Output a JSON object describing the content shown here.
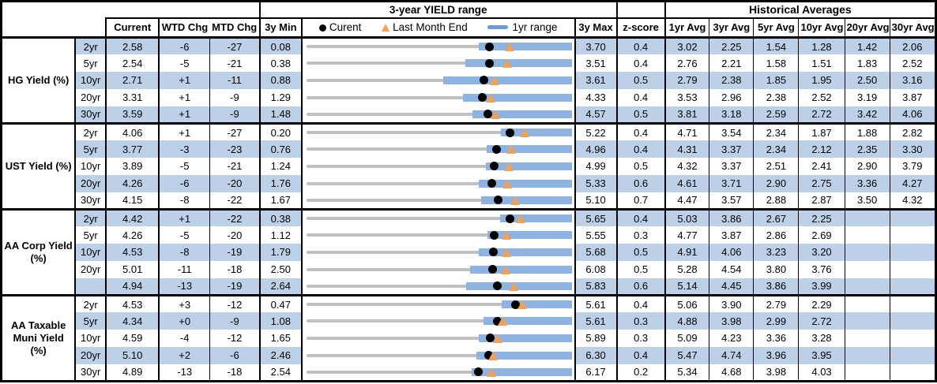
{
  "colors": {
    "stripe": "#bcd0e8",
    "bar": "#8db3e2",
    "track": "#c0c0c0",
    "dot": "#000000",
    "tri": "#f5a053",
    "border": "#000000",
    "dash": "#6b9bd7"
  },
  "header": {
    "yield_range_title": "3-year YIELD range",
    "historical_title": "Historical Averages",
    "current": "Current",
    "wtd": "WTD Chg",
    "mtd": "MTD Chg",
    "min": "3y Min",
    "max": "3y Max",
    "zscore": "z-score",
    "avgs": [
      "1yr Avg",
      "3yr Avg",
      "5yr Avg",
      "10yr Avg",
      "20yr Avg",
      "30yr Avg"
    ],
    "legend": {
      "current": "Curent",
      "last_month_end": "Last Month End",
      "range": "1yr range"
    }
  },
  "chart_data": {
    "type": "bullet-range-table",
    "title": "3-year YIELD range",
    "legend": [
      "Current (black dot)",
      "Last Month End (orange triangle)",
      "1yr range (blue bar)"
    ],
    "note_units": "yields in %, WTD/MTD changes in bp",
    "groups": [
      {
        "label": "HG Yield (%)",
        "rows": [
          {
            "tenor": "2yr",
            "current": "2.58",
            "wtd": "-6",
            "mtd": "-27",
            "min": "0.08",
            "max": "3.70",
            "z": "0.4",
            "avgs": [
              "3.02",
              "2.25",
              "1.54",
              "1.28",
              "1.42",
              "2.06"
            ],
            "last_month_end": 2.85,
            "range_1y": [
              2.43,
              3.7
            ]
          },
          {
            "tenor": "5yr",
            "current": "2.54",
            "wtd": "-5",
            "mtd": "-21",
            "min": "0.38",
            "max": "3.51",
            "z": "0.4",
            "avgs": [
              "2.76",
              "2.21",
              "1.58",
              "1.51",
              "1.83",
              "2.52"
            ],
            "last_month_end": 2.75,
            "range_1y": [
              2.26,
              3.51
            ]
          },
          {
            "tenor": "10yr",
            "current": "2.71",
            "wtd": "+1",
            "mtd": "-11",
            "min": "0.88",
            "max": "3.61",
            "z": "0.5",
            "avgs": [
              "2.79",
              "2.38",
              "1.85",
              "1.95",
              "2.50",
              "3.16"
            ],
            "last_month_end": 2.82,
            "range_1y": [
              2.29,
              3.61
            ]
          },
          {
            "tenor": "20yr",
            "current": "3.31",
            "wtd": "+1",
            "mtd": "-9",
            "min": "1.29",
            "max": "4.33",
            "z": "0.4",
            "avgs": [
              "3.53",
              "2.96",
              "2.38",
              "2.52",
              "3.19",
              "3.87"
            ],
            "last_month_end": 3.4,
            "range_1y": [
              3.08,
              4.33
            ]
          },
          {
            "tenor": "30yr",
            "current": "3.59",
            "wtd": "+1",
            "mtd": "-9",
            "min": "1.48",
            "max": "4.57",
            "z": "0.5",
            "avgs": [
              "3.81",
              "3.18",
              "2.59",
              "2.72",
              "3.42",
              "4.06"
            ],
            "last_month_end": 3.68,
            "range_1y": [
              3.41,
              4.57
            ]
          }
        ]
      },
      {
        "label": "UST Yield (%)",
        "rows": [
          {
            "tenor": "2yr",
            "current": "4.06",
            "wtd": "+1",
            "mtd": "-27",
            "min": "0.20",
            "max": "5.22",
            "z": "0.4",
            "avgs": [
              "4.71",
              "3.54",
              "2.34",
              "1.87",
              "1.88",
              "2.82"
            ],
            "last_month_end": 4.33,
            "range_1y": [
              3.88,
              5.22
            ]
          },
          {
            "tenor": "5yr",
            "current": "3.77",
            "wtd": "-3",
            "mtd": "-23",
            "min": "0.76",
            "max": "4.96",
            "z": "0.4",
            "avgs": [
              "4.31",
              "3.37",
              "2.34",
              "2.12",
              "2.35",
              "3.30"
            ],
            "last_month_end": 4.0,
            "range_1y": [
              3.61,
              4.96
            ]
          },
          {
            "tenor": "10yr",
            "current": "3.89",
            "wtd": "-5",
            "mtd": "-21",
            "min": "1.24",
            "max": "4.99",
            "z": "0.5",
            "avgs": [
              "4.32",
              "3.37",
              "2.51",
              "2.41",
              "2.90",
              "3.79"
            ],
            "last_month_end": 4.1,
            "range_1y": [
              3.78,
              4.99
            ]
          },
          {
            "tenor": "20yr",
            "current": "4.26",
            "wtd": "-6",
            "mtd": "-20",
            "min": "1.76",
            "max": "5.33",
            "z": "0.6",
            "avgs": [
              "4.61",
              "3.71",
              "2.90",
              "2.75",
              "3.36",
              "4.27"
            ],
            "last_month_end": 4.46,
            "range_1y": [
              4.08,
              5.33
            ]
          },
          {
            "tenor": "30yr",
            "current": "4.15",
            "wtd": "-8",
            "mtd": "-22",
            "min": "1.67",
            "max": "5.10",
            "z": "0.7",
            "avgs": [
              "4.47",
              "3.57",
              "2.88",
              "2.87",
              "3.50",
              "4.32"
            ],
            "last_month_end": 4.37,
            "range_1y": [
              3.93,
              5.1
            ]
          }
        ]
      },
      {
        "label": "AA Corp Yield\n(%)",
        "rows": [
          {
            "tenor": "2yr",
            "current": "4.42",
            "wtd": "+1",
            "mtd": "-22",
            "min": "0.38",
            "max": "5.65",
            "z": "0.4",
            "avgs": [
              "5.03",
              "3.86",
              "2.67",
              "2.25",
              "",
              ""
            ],
            "last_month_end": 4.64,
            "range_1y": [
              4.23,
              5.65
            ]
          },
          {
            "tenor": "5yr",
            "current": "4.26",
            "wtd": "-5",
            "mtd": "-20",
            "min": "1.12",
            "max": "5.55",
            "z": "0.3",
            "avgs": [
              "4.77",
              "3.87",
              "2.86",
              "2.69",
              "",
              ""
            ],
            "last_month_end": 4.46,
            "range_1y": [
              4.15,
              5.55
            ]
          },
          {
            "tenor": "10yr",
            "current": "4.53",
            "wtd": "-8",
            "mtd": "-19",
            "min": "1.79",
            "max": "5.68",
            "z": "0.5",
            "avgs": [
              "4.91",
              "4.06",
              "3.23",
              "3.20",
              "",
              ""
            ],
            "last_month_end": 4.72,
            "range_1y": [
              4.32,
              5.68
            ]
          },
          {
            "tenor": "20yr",
            "current": "5.01",
            "wtd": "-11",
            "mtd": "-18",
            "min": "2.50",
            "max": "6.08",
            "z": "0.5",
            "avgs": [
              "5.28",
              "4.54",
              "3.80",
              "3.76",
              "",
              ""
            ],
            "last_month_end": 5.19,
            "range_1y": [
              4.71,
              6.08
            ]
          },
          {
            "tenor": "",
            "current": "4.94",
            "wtd": "-13",
            "mtd": "-19",
            "min": "2.64",
            "max": "5.83",
            "z": "0.6",
            "avgs": [
              "5.14",
              "4.45",
              "3.86",
              "3.99",
              "",
              ""
            ],
            "last_month_end": 5.13,
            "range_1y": [
              4.56,
              5.83
            ]
          }
        ]
      },
      {
        "label": "AA Taxable\nMuni Yield\n(%)",
        "rows": [
          {
            "tenor": "2yr",
            "current": "4.53",
            "wtd": "+3",
            "mtd": "-12",
            "min": "0.47",
            "max": "5.61",
            "z": "0.4",
            "avgs": [
              "5.06",
              "3.90",
              "2.79",
              "2.29",
              "",
              ""
            ],
            "last_month_end": 4.65,
            "range_1y": [
              4.25,
              5.61
            ]
          },
          {
            "tenor": "5yr",
            "current": "4.34",
            "wtd": "+0",
            "mtd": "-9",
            "min": "1.08",
            "max": "5.61",
            "z": "0.3",
            "avgs": [
              "4.88",
              "3.98",
              "2.99",
              "2.72",
              "",
              ""
            ],
            "last_month_end": 4.43,
            "range_1y": [
              4.1,
              5.61
            ]
          },
          {
            "tenor": "10yr",
            "current": "4.59",
            "wtd": "-4",
            "mtd": "-12",
            "min": "1.65",
            "max": "5.89",
            "z": "0.3",
            "avgs": [
              "5.09",
              "4.23",
              "3.36",
              "3.28",
              "",
              ""
            ],
            "last_month_end": 4.71,
            "range_1y": [
              4.41,
              5.89
            ]
          },
          {
            "tenor": "20yr",
            "current": "5.10",
            "wtd": "+2",
            "mtd": "-6",
            "min": "2.46",
            "max": "6.30",
            "z": "0.4",
            "avgs": [
              "5.47",
              "4.74",
              "3.96",
              "3.95",
              "",
              ""
            ],
            "last_month_end": 5.16,
            "range_1y": [
              4.92,
              6.3
            ]
          },
          {
            "tenor": "30yr",
            "current": "4.89",
            "wtd": "-13",
            "mtd": "-18",
            "min": "2.54",
            "max": "6.17",
            "z": "0.2",
            "avgs": [
              "5.34",
              "4.68",
              "3.98",
              "4.03",
              "",
              ""
            ],
            "last_month_end": 5.07,
            "range_1y": [
              4.8,
              6.17
            ]
          }
        ]
      }
    ]
  }
}
